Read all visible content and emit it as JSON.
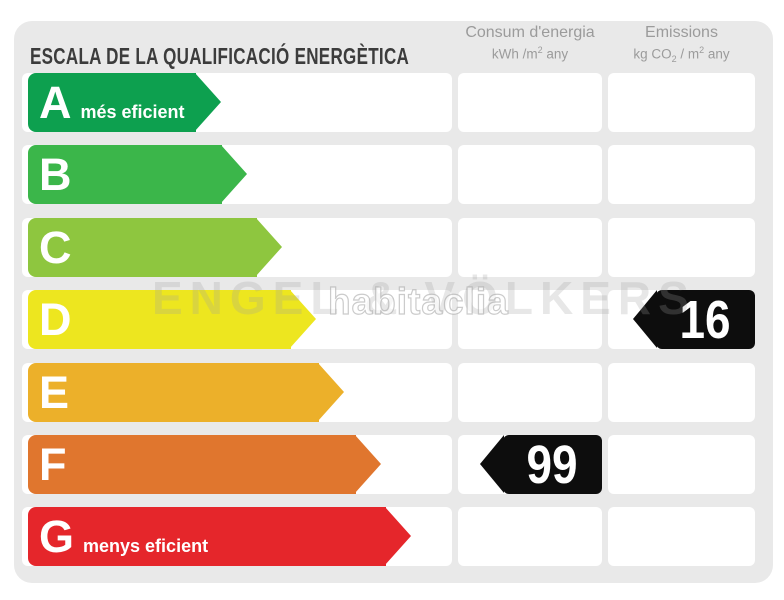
{
  "title": "ESCALA DE LA QUALIFICACIÓ ENERGÈTICA",
  "columns": {
    "consum": {
      "title": "Consum d'energia",
      "unit_p1": "kWh /m",
      "unit_sup": "2",
      "unit_p2": " any"
    },
    "emissions": {
      "title": "Emissions",
      "unit_p1": "kg CO",
      "unit_sub": "2",
      "unit_p2": " / m",
      "unit_sup": "2",
      "unit_p3": " any"
    }
  },
  "scale": {
    "rows": [
      {
        "letter": "A",
        "label": "més eficient",
        "color": "#0DA04F",
        "arrow_width": 194
      },
      {
        "letter": "B",
        "label": "",
        "color": "#3BB64A",
        "arrow_width": 220
      },
      {
        "letter": "C",
        "label": "",
        "color": "#8EC63F",
        "arrow_width": 255
      },
      {
        "letter": "D",
        "label": "",
        "color": "#EDE61F",
        "arrow_width": 289
      },
      {
        "letter": "E",
        "label": "",
        "color": "#ECB02A",
        "arrow_width": 317
      },
      {
        "letter": "F",
        "label": "",
        "color": "#E0762E",
        "arrow_width": 354
      },
      {
        "letter": "G",
        "label": "menys eficient",
        "color": "#E5262B",
        "arrow_width": 384
      }
    ]
  },
  "ratings": {
    "consum": {
      "value": "99",
      "row_letter": "F"
    },
    "emissions": {
      "value": "16",
      "row_letter": "D"
    }
  },
  "watermarks": {
    "brand": "ENGEL & VÖLKERS",
    "portal": "habitaclia"
  },
  "colors": {
    "card_bg": "#E9E9E9",
    "marker_bg": "#0D0D0D",
    "title_text": "#3C3C3C",
    "header_text": "#9B9B9B"
  },
  "chart_data": {
    "type": "bar",
    "title": "ESCALA DE LA QUALIFICACIÓ ENERGÈTICA",
    "categories": [
      "A",
      "B",
      "C",
      "D",
      "E",
      "F",
      "G"
    ],
    "category_labels": {
      "A": "més eficient",
      "G": "menys eficient"
    },
    "series": [
      {
        "name": "Consum d'energia (kWh/m2 any)",
        "rated_category": "F",
        "value": 99
      },
      {
        "name": "Emissions (kg CO2 / m2 any)",
        "rated_category": "D",
        "value": 16
      }
    ],
    "legend_position": "none",
    "grid": false
  }
}
